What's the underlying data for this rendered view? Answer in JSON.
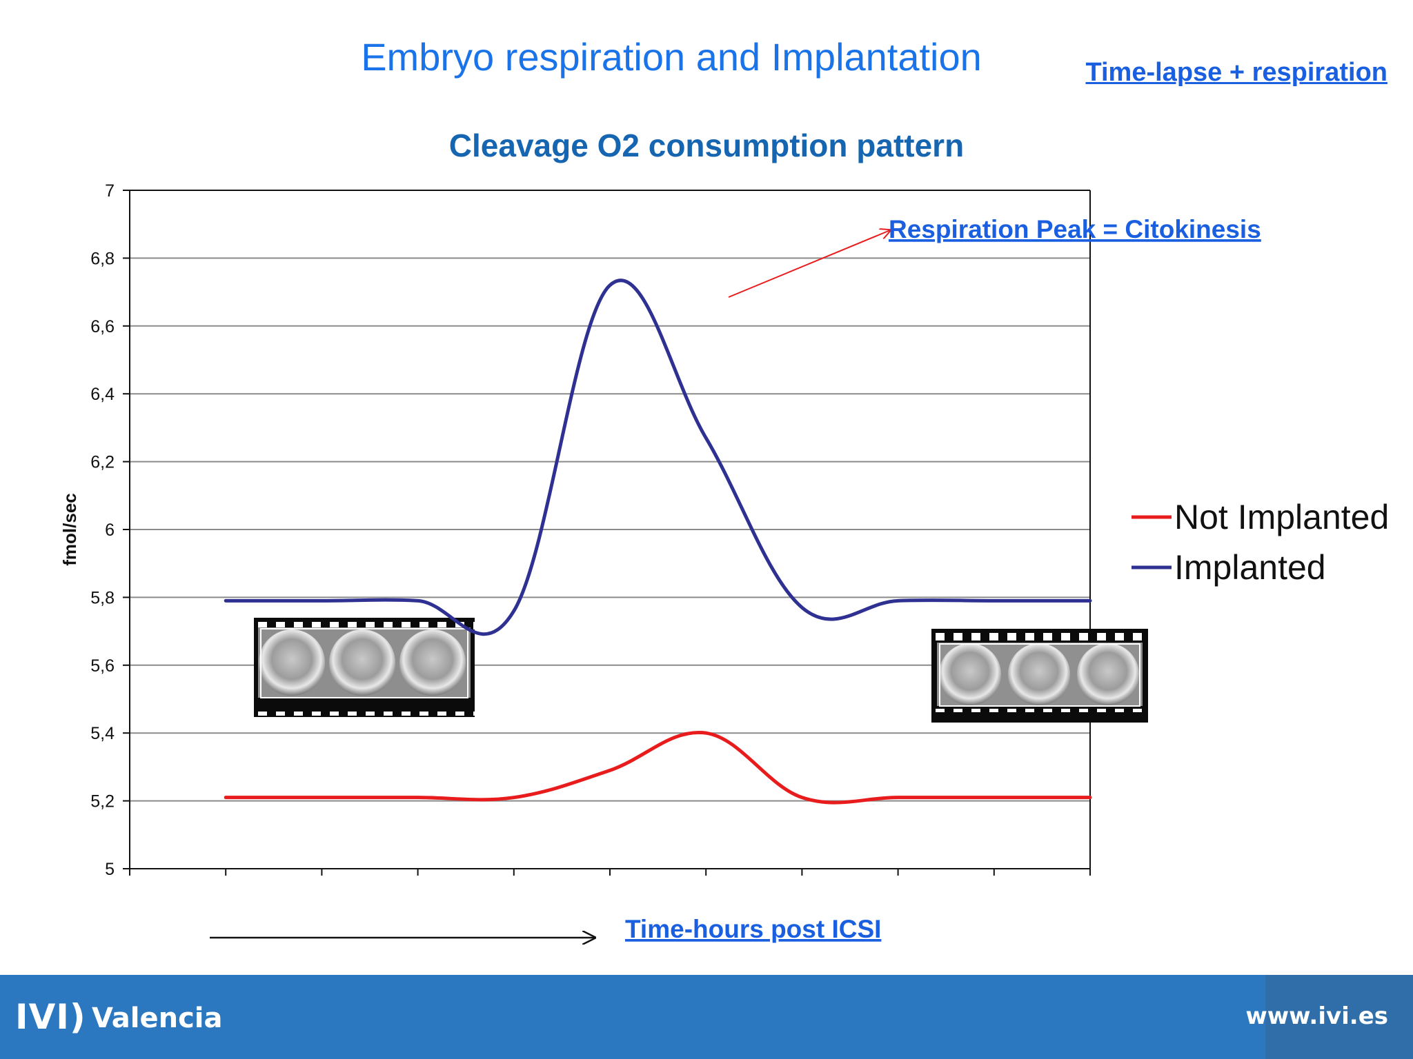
{
  "slide": {
    "title": "Embryo respiration and Implantation",
    "timelapse_link": "Time-lapse + respiration",
    "peak_annotation": "Respiration Peak = Citokinesis",
    "time_annotation": "Time-hours post ICSI"
  },
  "footer": {
    "logo_text": "IVI)",
    "city": "Valencia",
    "website": "www.ivi.es",
    "color": "#2c78c0"
  },
  "chart_data": {
    "type": "line",
    "title": "Cleavage O2 consumption pattern",
    "xlabel": "",
    "ylabel": "fmol/sec",
    "ylim": [
      5,
      7
    ],
    "yticks": [
      "5",
      "5,2",
      "5,4",
      "5,6",
      "5,8",
      "6",
      "6,2",
      "6,4",
      "6,6",
      "6,8",
      "7"
    ],
    "x": [
      1,
      2,
      3,
      4,
      5,
      6,
      7,
      8,
      9,
      10
    ],
    "xlim": [
      0,
      10
    ],
    "grid": true,
    "legend_position": "right",
    "series": [
      {
        "name": "Not Implanted",
        "color": "#e81c1c",
        "values": [
          5.21,
          5.21,
          5.21,
          5.21,
          5.29,
          5.4,
          5.21,
          5.21,
          5.21,
          5.21
        ]
      },
      {
        "name": "Implanted",
        "color": "#2e3192",
        "values": [
          5.79,
          5.79,
          5.79,
          5.76,
          6.72,
          6.27,
          5.77,
          5.79,
          5.79,
          5.79
        ]
      }
    ]
  }
}
